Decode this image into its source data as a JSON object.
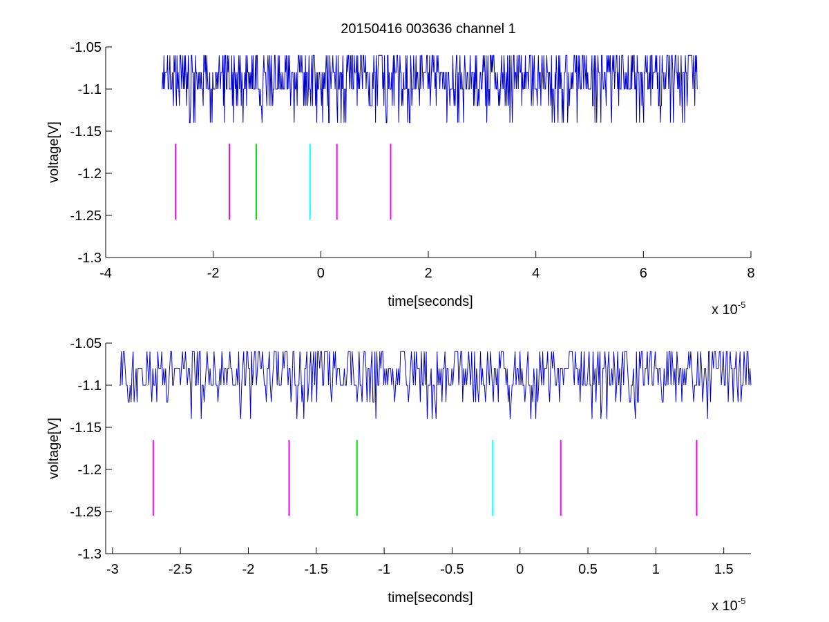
{
  "figure": {
    "title": "20150416 003636 channel 1"
  },
  "chart_data": [
    {
      "type": "line",
      "title": "20150416 003636 channel 1",
      "xlabel": "time[seconds]",
      "ylabel": "voltage[V]",
      "x_multiplier_label": "x 10",
      "x_multiplier_exponent": "-5",
      "xlim": [
        -4,
        8
      ],
      "ylim": [
        -1.3,
        -1.05
      ],
      "xticks": [
        -4,
        -2,
        0,
        2,
        4,
        6,
        8
      ],
      "xtick_labels": [
        "-4",
        "-2",
        "0",
        "2",
        "4",
        "6",
        "8"
      ],
      "yticks": [
        -1.05,
        -1.1,
        -1.15,
        -1.2,
        -1.25,
        -1.3
      ],
      "ytick_labels": [
        "-1.05",
        "-1.1",
        "-1.15",
        "-1.2",
        "-1.25",
        "-1.3"
      ],
      "grid": false,
      "signal": {
        "color": "#0000cc",
        "x_start": -2.95,
        "x_end": 7.0,
        "levels": [
          -1.06,
          -1.08,
          -1.1,
          -1.12,
          -1.14
        ]
      },
      "markers": [
        {
          "x": -2.7,
          "y_top": -1.165,
          "y_bottom": -1.255,
          "color": "#ff00ff"
        },
        {
          "x": -1.7,
          "y_top": -1.165,
          "y_bottom": -1.255,
          "color": "#ff00ff"
        },
        {
          "x": -1.2,
          "y_top": -1.165,
          "y_bottom": -1.255,
          "color": "#00dd00"
        },
        {
          "x": -0.2,
          "y_top": -1.165,
          "y_bottom": -1.255,
          "color": "#00ffff"
        },
        {
          "x": 0.3,
          "y_top": -1.165,
          "y_bottom": -1.255,
          "color": "#ff00ff"
        },
        {
          "x": 1.3,
          "y_top": -1.165,
          "y_bottom": -1.255,
          "color": "#ff00ff"
        }
      ]
    },
    {
      "type": "line",
      "title": "",
      "xlabel": "time[seconds]",
      "ylabel": "voltage[V]",
      "x_multiplier_label": "x 10",
      "x_multiplier_exponent": "-5",
      "xlim": [
        -3.05,
        1.7
      ],
      "ylim": [
        -1.3,
        -1.05
      ],
      "xticks": [
        -3,
        -2.5,
        -2,
        -1.5,
        -1,
        -0.5,
        0,
        0.5,
        1,
        1.5
      ],
      "xtick_labels": [
        "-3",
        "-2.5",
        "-2",
        "-1.5",
        "-1",
        "-0.5",
        "0",
        "0.5",
        "1",
        "1.5"
      ],
      "yticks": [
        -1.05,
        -1.1,
        -1.15,
        -1.2,
        -1.25,
        -1.3
      ],
      "ytick_labels": [
        "-1.05",
        "-1.1",
        "-1.15",
        "-1.2",
        "-1.25",
        "-1.3"
      ],
      "grid": false,
      "signal": {
        "color": "#0000cc",
        "x_start": -2.95,
        "x_end": 1.7,
        "levels": [
          -1.06,
          -1.08,
          -1.1,
          -1.12,
          -1.14
        ]
      },
      "markers": [
        {
          "x": -2.7,
          "y_top": -1.165,
          "y_bottom": -1.255,
          "color": "#ff00ff"
        },
        {
          "x": -1.7,
          "y_top": -1.165,
          "y_bottom": -1.255,
          "color": "#ff00ff"
        },
        {
          "x": -1.2,
          "y_top": -1.165,
          "y_bottom": -1.255,
          "color": "#00dd00"
        },
        {
          "x": -0.2,
          "y_top": -1.165,
          "y_bottom": -1.255,
          "color": "#00ffff"
        },
        {
          "x": 0.3,
          "y_top": -1.165,
          "y_bottom": -1.255,
          "color": "#ff00ff"
        },
        {
          "x": 1.3,
          "y_top": -1.165,
          "y_bottom": -1.255,
          "color": "#ff00ff"
        }
      ]
    }
  ]
}
